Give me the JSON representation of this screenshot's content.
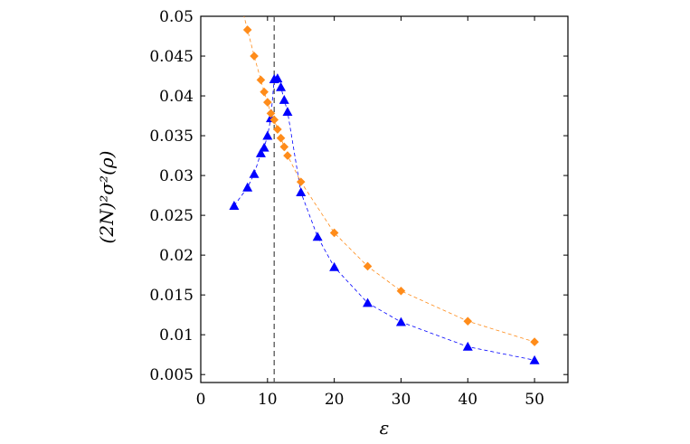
{
  "chart_data": {
    "type": "scatter",
    "title": "",
    "xlabel": "ε",
    "ylabel": "(2N)²σ²(ρ)",
    "xlim": [
      0,
      55
    ],
    "ylim": [
      0.004,
      0.05
    ],
    "xticks": [
      0,
      10,
      20,
      30,
      40,
      50
    ],
    "xtick_labels": [
      "0",
      "10",
      "20",
      "30",
      "40",
      "50"
    ],
    "yticks": [
      0.005,
      0.01,
      0.015,
      0.02,
      0.025,
      0.03,
      0.035,
      0.04,
      0.045,
      0.05
    ],
    "ytick_labels": [
      "0.005",
      "0.01",
      "0.015",
      "0.02",
      "0.025",
      "0.03",
      "0.035",
      "0.04",
      "0.045",
      "0.05"
    ],
    "grid": false,
    "vline_x": 11,
    "series": [
      {
        "marker": "triangle",
        "color": "#0000ff",
        "x": [
          5,
          7,
          8,
          9,
          9.5,
          10,
          10.5,
          11,
          11.5,
          12,
          12.5,
          13,
          15,
          17.5,
          20,
          25,
          30,
          40,
          50
        ],
        "y": [
          0.0262,
          0.0285,
          0.0302,
          0.0328,
          0.0335,
          0.035,
          0.0372,
          0.0421,
          0.0422,
          0.0411,
          0.0395,
          0.038,
          0.0279,
          0.0223,
          0.0185,
          0.014,
          0.0116,
          0.0085,
          0.0068
        ]
      },
      {
        "marker": "diamond",
        "color": "#ff8c1a",
        "x": [
          7,
          8,
          9,
          9.5,
          10,
          10.5,
          11,
          11.5,
          12,
          12.5,
          13,
          15,
          20,
          25,
          30,
          40,
          50
        ],
        "y": [
          0.0483,
          0.045,
          0.042,
          0.0405,
          0.0392,
          0.0378,
          0.037,
          0.0358,
          0.0347,
          0.0336,
          0.0325,
          0.0292,
          0.0228,
          0.0186,
          0.0155,
          0.0117,
          0.0091
        ]
      }
    ]
  }
}
